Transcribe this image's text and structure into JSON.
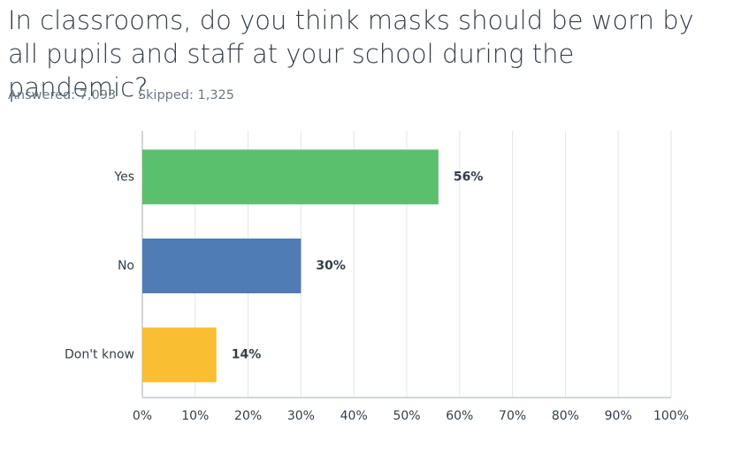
{
  "chart_data": {
    "type": "bar",
    "orientation": "horizontal",
    "title": "In classrooms, do you think masks should be worn by all pupils and staff at your school during the pandemic?",
    "answered": "Answered: 7,093",
    "skipped": "Skipped: 1,325",
    "categories": [
      "Yes",
      "No",
      "Don't know"
    ],
    "values": [
      56,
      30,
      14
    ],
    "value_labels": [
      "56%",
      "30%",
      "14%"
    ],
    "colors": [
      "#5bc06e",
      "#507cb6",
      "#f9be31"
    ],
    "xlim": [
      0,
      100
    ],
    "xticks": [
      {
        "value": 0,
        "label": "0%"
      },
      {
        "value": 10,
        "label": "10%"
      },
      {
        "value": 20,
        "label": "20%"
      },
      {
        "value": 30,
        "label": "30%"
      },
      {
        "value": 40,
        "label": "40%"
      },
      {
        "value": 50,
        "label": "50%"
      },
      {
        "value": 60,
        "label": "60%"
      },
      {
        "value": 70,
        "label": "70%"
      },
      {
        "value": 80,
        "label": "80%"
      },
      {
        "value": 90,
        "label": "90%"
      },
      {
        "value": 100,
        "label": "100%"
      }
    ],
    "grid": true
  }
}
